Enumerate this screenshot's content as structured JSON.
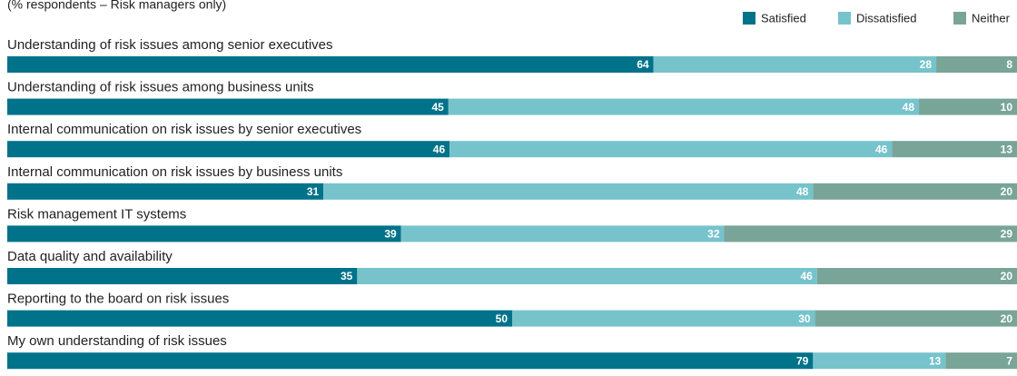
{
  "chart_data": {
    "type": "stacked-bar-100",
    "subtitle": "(% respondents – Risk managers only)",
    "legend": "top-right",
    "categories": [
      "Understanding of risk issues among senior executives",
      "Understanding of risk issues among business units",
      "Internal communication on risk issues by senior executives",
      "Internal communication on risk issues by business units",
      "Risk management IT systems",
      "Data quality and availability",
      "Reporting to the board on risk issues",
      "My own understanding of risk issues"
    ],
    "series": [
      {
        "name": "Satisfied",
        "color": "#00738a",
        "values": [
          64,
          45,
          46,
          31,
          39,
          35,
          50,
          79
        ]
      },
      {
        "name": "Dissatisfied",
        "color": "#76c3cc",
        "values": [
          28,
          48,
          46,
          48,
          32,
          46,
          30,
          13
        ]
      },
      {
        "name": "Neither",
        "color": "#78a597",
        "values": [
          8,
          10,
          13,
          20,
          29,
          20,
          20,
          7
        ]
      }
    ]
  }
}
